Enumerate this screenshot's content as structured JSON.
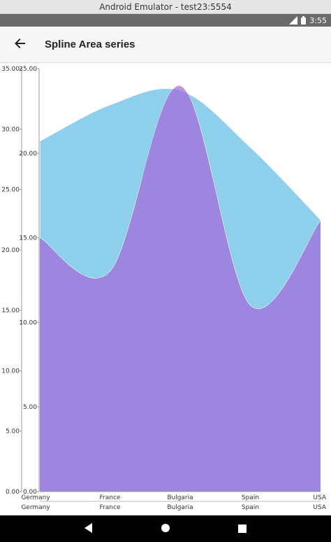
{
  "window": {
    "title": "Android Emulator - test23:5554"
  },
  "status_bar": {
    "time": "3:55",
    "icons": [
      "signal-icon",
      "battery-icon"
    ]
  },
  "app_bar": {
    "title": "Spline Area series",
    "back_icon": "arrow-back-icon"
  },
  "chart_data": {
    "type": "area",
    "spline": true,
    "title": "",
    "categories": [
      "Germany",
      "France",
      "Bulgaria",
      "Spain",
      "USA"
    ],
    "y_axes": [
      {
        "ylim": [
          0,
          35
        ],
        "ticks": [
          "0.00",
          "5.00",
          "10.00",
          "15.00",
          "20.00",
          "25.00",
          "30.00",
          "35.00"
        ]
      },
      {
        "ylim": [
          0,
          25
        ],
        "ticks": [
          "0.00",
          "5.00",
          "10.00",
          "15.00",
          "20.00",
          "25.00"
        ]
      }
    ],
    "series": [
      {
        "values": [
          29,
          32,
          33.2,
          28.5,
          22.5
        ],
        "y_axis": 0,
        "color": "#8ecfec"
      },
      {
        "values": [
          15,
          13,
          24,
          11,
          16
        ],
        "y_axis": 1,
        "color": "#c493dc"
      }
    ],
    "overlap_color": "#9c86e0",
    "grid": false,
    "legend": "none"
  },
  "nav_bar": {
    "back_icon": "nav-back-icon",
    "home_icon": "nav-home-icon",
    "recents_icon": "nav-recents-icon"
  }
}
